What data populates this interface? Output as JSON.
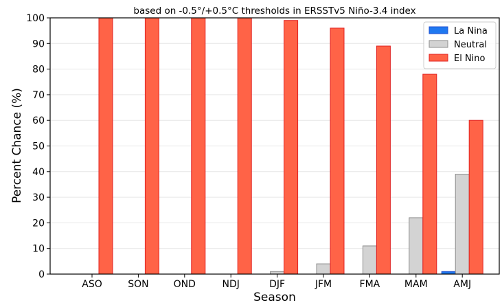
{
  "chart_data": {
    "type": "bar",
    "title": "based on -0.5°/+0.5°C thresholds in ERSSTv5 Niño-3.4 index",
    "xlabel": "Season",
    "ylabel": "Percent Chance (%)",
    "ylim": [
      0,
      100
    ],
    "yticks": [
      0,
      10,
      20,
      30,
      40,
      50,
      60,
      70,
      80,
      90,
      100
    ],
    "grid": "horizontal",
    "legend_position": "top-right",
    "categories": [
      "ASO",
      "SON",
      "OND",
      "NDJ",
      "DJF",
      "JFM",
      "FMA",
      "MAM",
      "AMJ"
    ],
    "series": [
      {
        "name": "La Nina",
        "color": "#1f78f0",
        "edge": "#1f4fd0",
        "values": [
          0,
          0,
          0,
          0,
          0,
          0,
          0,
          0,
          1
        ]
      },
      {
        "name": "Neutral",
        "color": "#d3d3d3",
        "edge": "#8c8c8c",
        "values": [
          0,
          0,
          0,
          0,
          1,
          4,
          11,
          22,
          39
        ]
      },
      {
        "name": "El Nino",
        "color": "#ff6347",
        "edge": "#e02020",
        "values": [
          100,
          100,
          100,
          100,
          99,
          96,
          89,
          78,
          60
        ]
      }
    ]
  }
}
